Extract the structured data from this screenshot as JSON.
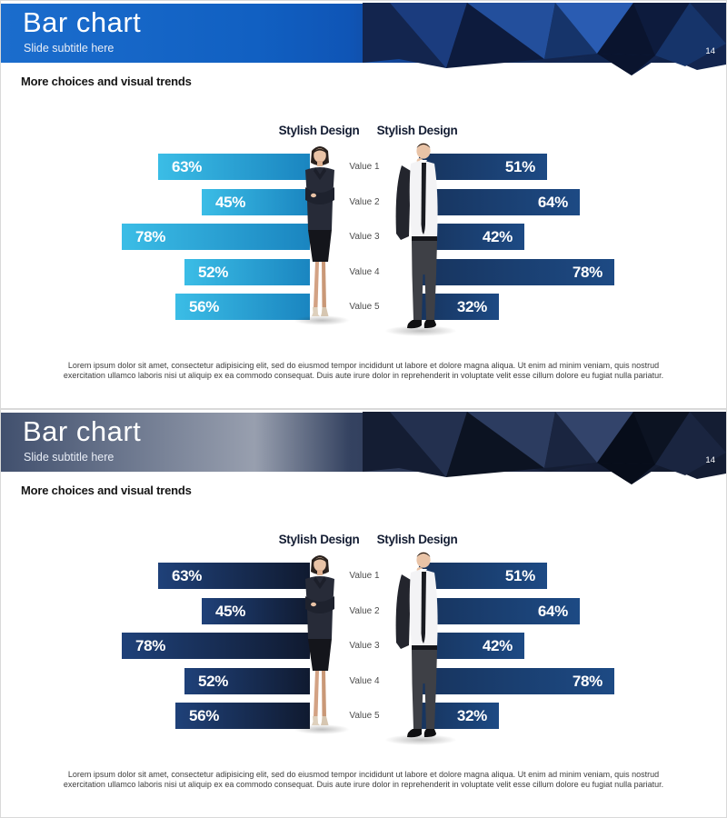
{
  "slides": [
    {
      "header": {
        "title": "Bar chart",
        "subtitle": "Slide subtitle here",
        "page_number": "14"
      },
      "section_heading": "More choices and visual trends",
      "body_text": "Lorem ipsum dolor sit amet, consectetur adipisicing elit, sed do eiusmod tempor incididunt ut labore et dolore magna aliqua. Ut enim ad minim veniam, quis nostrud exercitation ullamco laboris nisi ut aliquip ex ea commodo consequat. Duis aute irure dolor in reprehenderit in voluptate velit esse cillum dolore eu fugiat nulla pariatur.",
      "theme": {
        "name": "blue",
        "header_colors": [
          "#1b6dcd",
          "#0f55b6",
          "#101f42"
        ],
        "left_bar_gradient": [
          "#3bbde6",
          "#1a85c0"
        ],
        "right_bar_gradient": [
          "#17345e",
          "#1d4a84"
        ]
      }
    },
    {
      "header": {
        "title": "Bar chart",
        "subtitle": "Slide subtitle here",
        "page_number": "14"
      },
      "section_heading": "More choices and visual trends",
      "body_text": "Lorem ipsum dolor sit amet, consectetur adipisicing elit, sed do eiusmod tempor incididunt ut labore et dolore magna aliqua. Ut enim ad minim veniam, quis nostrud exercitation ullamco laboris nisi ut aliquip ex ea commodo consequat. Duis aute irure dolor in reprehenderit in voluptate velit esse cillum dolore eu fugiat nulla pariatur.",
      "theme": {
        "name": "dark-navy",
        "header_colors": [
          "#41506e",
          "#354361",
          "#0e1626"
        ],
        "left_bar_gradient": [
          "#1f4179",
          "#101a30"
        ],
        "right_bar_gradient": [
          "#17345e",
          "#1d4a84"
        ]
      }
    }
  ],
  "chart_data": {
    "type": "bar",
    "orientation": "horizontal",
    "categories": [
      "Value 1",
      "Value 2",
      "Value 3",
      "Value 4",
      "Value 5"
    ],
    "series": [
      {
        "name": "Stylish Design",
        "side": "left",
        "unit": "%",
        "values": [
          63,
          45,
          78,
          52,
          56
        ]
      },
      {
        "name": "Stylish Design",
        "side": "right",
        "unit": "%",
        "values": [
          51,
          64,
          42,
          78,
          32
        ]
      }
    ],
    "value_labels": {
      "left": [
        "63%",
        "45%",
        "78%",
        "52%",
        "56%"
      ],
      "right": [
        "51%",
        "64%",
        "42%",
        "78%",
        "32%"
      ]
    },
    "xlim": [
      0,
      100
    ],
    "grid": false,
    "legend_position": "top-center"
  }
}
